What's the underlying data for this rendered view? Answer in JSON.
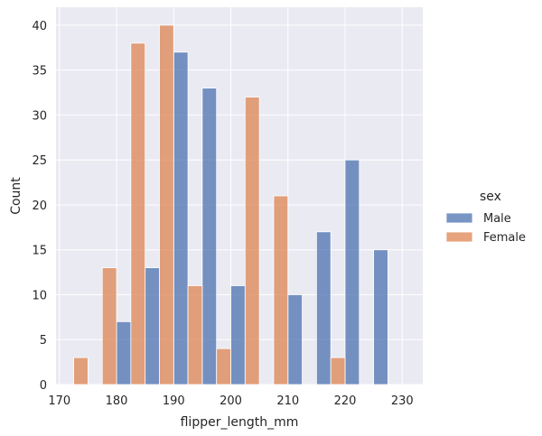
{
  "chart_data": {
    "type": "bar",
    "title": "",
    "xlabel": "flipper_length_mm",
    "ylabel": "Count",
    "xlim": [
      169.4,
      233.6
    ],
    "ylim": [
      0,
      42
    ],
    "xticks": [
      170,
      180,
      190,
      200,
      210,
      220,
      230
    ],
    "yticks": [
      0,
      5,
      10,
      15,
      20,
      25,
      30,
      35,
      40
    ],
    "grid": true,
    "background": "#eaeaf2",
    "legend": {
      "title": "sex",
      "placement": "right"
    },
    "bin_width": 5,
    "series": [
      {
        "name": "Male",
        "color": "#4c72b0",
        "bins": [
          {
            "x0": 177.5,
            "x1": 182.5,
            "value": 7
          },
          {
            "x0": 182.5,
            "x1": 187.5,
            "value": 13
          },
          {
            "x0": 187.5,
            "x1": 192.5,
            "value": 37
          },
          {
            "x0": 192.5,
            "x1": 197.5,
            "value": 33
          },
          {
            "x0": 197.5,
            "x1": 202.5,
            "value": 11
          },
          {
            "x0": 207.5,
            "x1": 212.5,
            "value": 10
          },
          {
            "x0": 212.5,
            "x1": 217.5,
            "value": 17
          },
          {
            "x0": 217.5,
            "x1": 222.5,
            "value": 25
          },
          {
            "x0": 222.5,
            "x1": 227.5,
            "value": 15
          }
        ]
      },
      {
        "name": "Female",
        "color": "#dd8452",
        "bins": [
          {
            "x0": 172.5,
            "x1": 177.5,
            "value": 3
          },
          {
            "x0": 177.5,
            "x1": 182.5,
            "value": 13
          },
          {
            "x0": 182.5,
            "x1": 187.5,
            "value": 38
          },
          {
            "x0": 187.5,
            "x1": 192.5,
            "value": 40
          },
          {
            "x0": 192.5,
            "x1": 197.5,
            "value": 11
          },
          {
            "x0": 197.5,
            "x1": 202.5,
            "value": 4
          },
          {
            "x0": 202.5,
            "x1": 207.5,
            "value": 32
          },
          {
            "x0": 207.5,
            "x1": 212.5,
            "value": 21
          },
          {
            "x0": 217.5,
            "x1": 222.5,
            "value": 3
          }
        ]
      }
    ]
  }
}
